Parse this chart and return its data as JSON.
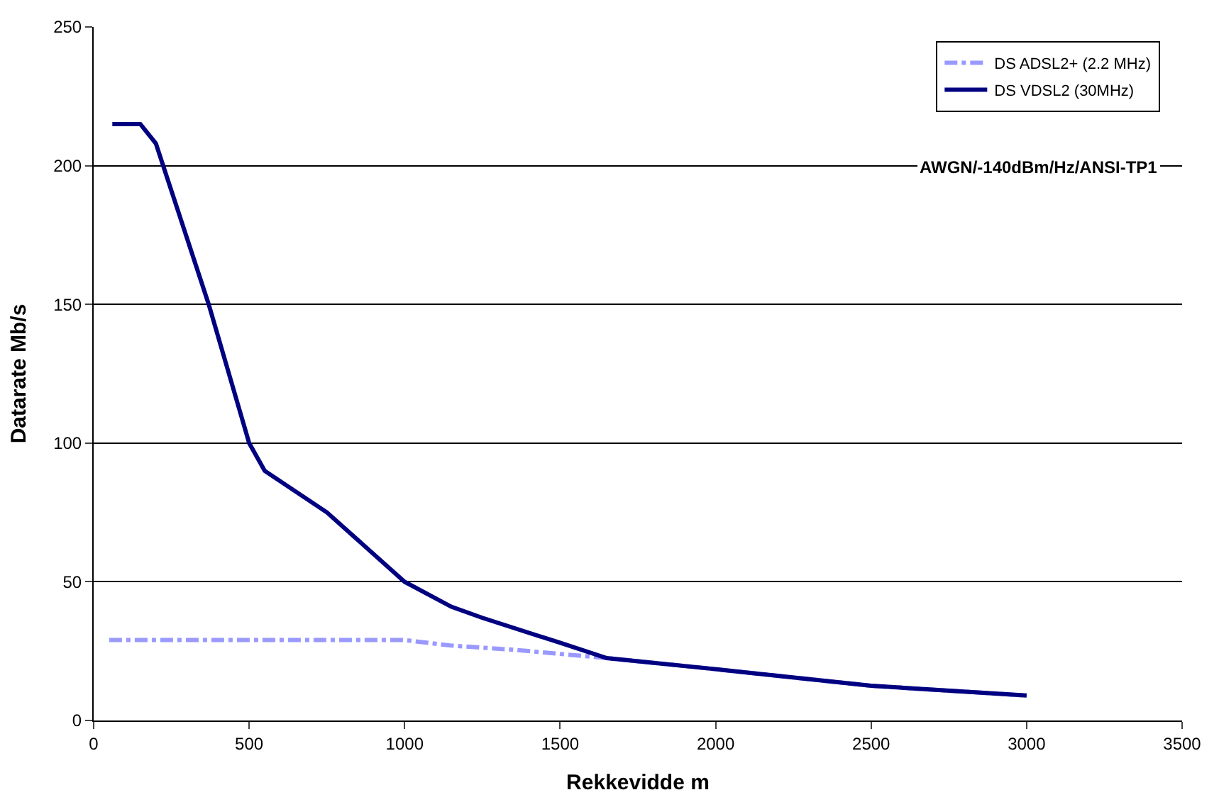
{
  "chart_data": {
    "type": "line",
    "xlabel": "Rekkevidde m",
    "ylabel": "Datarate Mb/s",
    "xlim": [
      0,
      3500
    ],
    "xticks": [
      0,
      500,
      1000,
      1500,
      2000,
      2500,
      3000,
      3500
    ],
    "ylim": [
      0,
      250
    ],
    "yticks": [
      0,
      50,
      100,
      150,
      200,
      250
    ],
    "grid": "y",
    "legend": "top right",
    "annotations": [
      "AWGN/-140dBm/Hz/ANSI-TP1"
    ],
    "series": [
      {
        "name": "DS ADSL2+ (2.2 MHz)",
        "color": "#9999ff",
        "line_style": "dashed",
        "x": [
          50,
          500,
          1000,
          1150,
          1350,
          1500,
          1650,
          2000,
          2500,
          3000
        ],
        "values": [
          29,
          29,
          29,
          27,
          25.5,
          24,
          22.5,
          18.5,
          12.5,
          9
        ]
      },
      {
        "name": "DS VDSL2 (30MHz)",
        "color": "#000080",
        "line_style": "solid",
        "x": [
          60,
          150,
          200,
          370,
          500,
          550,
          750,
          1000,
          1150,
          1250,
          1500,
          1650,
          2000,
          2500,
          3000
        ],
        "values": [
          215,
          215,
          208,
          150,
          100,
          90,
          75,
          50,
          41,
          37,
          28,
          22.5,
          18.5,
          12.5,
          9
        ]
      }
    ]
  }
}
